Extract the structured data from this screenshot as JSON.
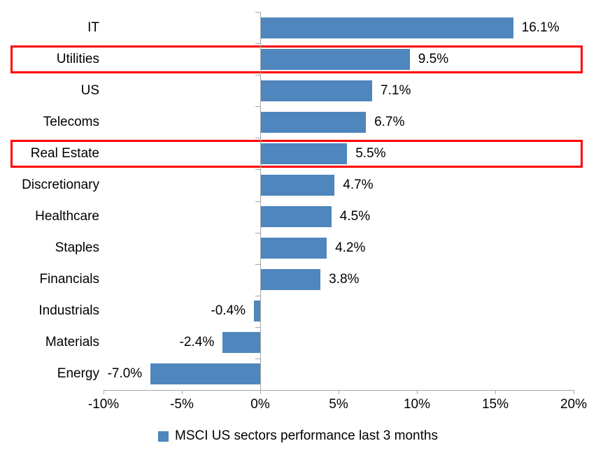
{
  "chart_data": {
    "type": "bar",
    "orientation": "horizontal",
    "title": "",
    "categories": [
      "IT",
      "Utilities",
      "US",
      "Telecoms",
      "Real Estate",
      "Discretionary",
      "Healthcare",
      "Staples",
      "Financials",
      "Industrials",
      "Materials",
      "Energy"
    ],
    "values": [
      16.1,
      9.5,
      7.1,
      6.7,
      5.5,
      4.7,
      4.5,
      4.2,
      3.8,
      -0.4,
      -2.4,
      -7.0
    ],
    "value_labels": [
      "16.1%",
      "9.5%",
      "7.1%",
      "6.7%",
      "5.5%",
      "4.7%",
      "4.5%",
      "4.2%",
      "3.8%",
      "-0.4%",
      "-2.4%",
      "-7.0%"
    ],
    "highlighted_categories": [
      "Utilities",
      "Real Estate"
    ],
    "x_axis": {
      "tick_labels": [
        "-10%",
        "-5%",
        "0%",
        "5%",
        "10%",
        "15%",
        "20%"
      ],
      "tick_values": [
        -10,
        -5,
        0,
        5,
        10,
        15,
        20
      ],
      "range": [
        -10,
        20
      ]
    },
    "grid": false,
    "legend": {
      "label": "MSCI US sectors performance last 3 months",
      "position": "bottom"
    },
    "colors": {
      "bar": "#4E86BD",
      "highlight_box": "#FF0000",
      "axis": "#A6A6A6",
      "text": "#000000"
    }
  }
}
